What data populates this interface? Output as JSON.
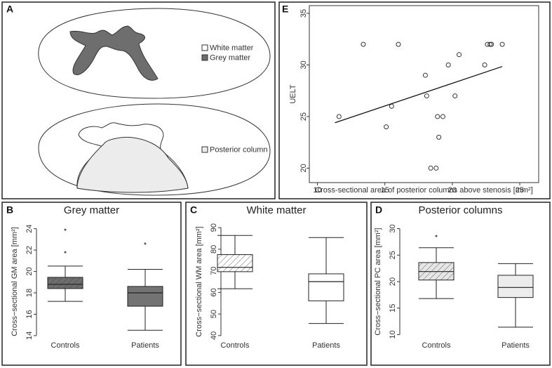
{
  "diagram": {
    "label": "A",
    "legend": [
      "White matter",
      "Grey matter",
      "Posterior column"
    ]
  },
  "chart_data": [
    {
      "type": "scatter",
      "label": "E",
      "xlabel": "Cross-sectional area of posterior columns above stenosis [mm²]",
      "ylabel": "UELT",
      "x": [
        11.6,
        13.4,
        15.1,
        15.5,
        16.0,
        18.0,
        18.1,
        18.4,
        18.8,
        18.9,
        19.0,
        19.3,
        19.7,
        20.2,
        20.5,
        22.4,
        22.6,
        22.8,
        22.9,
        23.7
      ],
      "y": [
        25,
        32,
        24,
        26,
        32,
        29,
        27,
        20,
        20,
        25,
        23,
        25,
        30,
        27,
        31,
        30,
        32,
        32,
        32,
        32
      ],
      "fit": {
        "x": [
          11.3,
          23.7
        ],
        "y": [
          24.4,
          29.85
        ]
      },
      "xlim": [
        9.4,
        26.4
      ],
      "ylim": [
        18.6,
        35.75
      ],
      "xticks": [
        10,
        15,
        20,
        25
      ],
      "yticks": [
        20,
        25,
        30,
        35
      ]
    },
    {
      "type": "box",
      "label": "B",
      "title": "Grey matter",
      "ylabel": "Cross−sectional GM area [mm²]",
      "categories": [
        "Controls",
        "Patients"
      ],
      "boxes": [
        {
          "whislo": 17.2,
          "q1": 18.4,
          "med": 18.8,
          "q3": 19.45,
          "whishi": 20.5,
          "fliers": [
            21.8,
            23.9
          ]
        },
        {
          "whislo": 14.5,
          "q1": 16.75,
          "med": 18.0,
          "q3": 18.6,
          "whishi": 20.2,
          "fliers": [
            22.6
          ]
        }
      ],
      "colors": [
        "#6e6e6e",
        "#737373"
      ],
      "hatch": [
        true,
        false
      ],
      "ylim": [
        13.6,
        24.5
      ],
      "yticks": [
        14,
        16,
        18,
        20,
        22,
        24
      ]
    },
    {
      "type": "box",
      "label": "C",
      "title": "White matter",
      "ylabel": "Cross−sectional WM area [mm²]",
      "categories": [
        "Controls",
        "Patients"
      ],
      "boxes": [
        {
          "whislo": 61.7,
          "q1": 69.6,
          "med": 71.6,
          "q3": 77.5,
          "whishi": 86.4,
          "fliers": []
        },
        {
          "whislo": 45.6,
          "q1": 56.1,
          "med": 65.0,
          "q3": 68.6,
          "whishi": 85.4,
          "fliers": []
        }
      ],
      "colors": [
        "#ffffff",
        "#ffffff"
      ],
      "hatch": [
        true,
        false
      ],
      "ylim": [
        38,
        92
      ],
      "yticks": [
        40,
        50,
        60,
        70,
        80,
        90
      ]
    },
    {
      "type": "box",
      "label": "D",
      "title": "Posterior columns",
      "ylabel": "Cross−sectional PC area [mm²]",
      "categories": [
        "Controls",
        "Patients"
      ],
      "boxes": [
        {
          "whislo": 16.8,
          "q1": 20.3,
          "med": 21.9,
          "q3": 23.6,
          "whishi": 26.4,
          "fliers": [
            28.6
          ]
        },
        {
          "whislo": 11.4,
          "q1": 17.0,
          "med": 18.9,
          "q3": 21.2,
          "whishi": 23.4,
          "fliers": []
        }
      ],
      "colors": [
        "#e6e6e6",
        "#ececec"
      ],
      "hatch": [
        true,
        false
      ],
      "ylim": [
        9,
        31
      ],
      "yticks": [
        10,
        15,
        20,
        25,
        30
      ]
    }
  ]
}
